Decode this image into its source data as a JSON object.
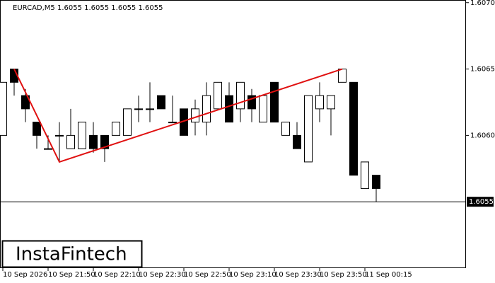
{
  "chart_data": {
    "type": "candlestick",
    "title": "EURCAD,M5  1.6055 1.6055 1.6055 1.6055",
    "categories": [
      "10 Sep 2026",
      null,
      null,
      null,
      "10 Sep 21:50",
      null,
      null,
      null,
      "10 Sep 22:10",
      null,
      null,
      null,
      "10 Sep 22:30",
      null,
      null,
      null,
      "10 Sep 22:50",
      null,
      null,
      null,
      "10 Sep 23:10",
      null,
      null,
      null,
      "10 Sep 23:30",
      null,
      null,
      null,
      "10 Sep 23:50",
      null,
      null,
      null,
      "11 Sep 00:15",
      null
    ],
    "open": [
      1.606,
      1.6065,
      1.6063,
      1.6061,
      1.6059,
      1.606,
      1.6059,
      1.6059,
      1.606,
      1.606,
      1.606,
      1.606,
      1.6062,
      1.6062,
      1.6063,
      1.6061,
      1.6062,
      1.6061,
      1.6061,
      1.6062,
      1.6063,
      1.6062,
      1.6063,
      1.6061,
      1.6064,
      1.606,
      1.606,
      1.6058,
      1.6062,
      1.6062,
      1.6064,
      1.6064,
      1.6056,
      1.6057
    ],
    "high": [
      1.6064,
      1.6065,
      1.60635,
      1.6061,
      1.606,
      1.6061,
      1.6062,
      1.6061,
      1.6061,
      1.606,
      1.6061,
      1.6062,
      1.6063,
      1.6064,
      1.6063,
      1.6063,
      1.6062,
      1.60627,
      1.6064,
      1.6064,
      1.6064,
      1.6064,
      1.60635,
      1.6063,
      1.6064,
      1.6061,
      1.6061,
      1.6063,
      1.6064,
      1.6063,
      1.6065,
      1.6064,
      1.6058,
      1.6057
    ],
    "low": [
      1.606,
      1.6063,
      1.6061,
      1.6059,
      1.6059,
      1.6058,
      1.6059,
      1.6059,
      1.60587,
      1.6058,
      1.606,
      1.606,
      1.6061,
      1.6061,
      1.6062,
      1.6061,
      1.606,
      1.606,
      1.606,
      1.6062,
      1.6061,
      1.6061,
      1.6061,
      1.6061,
      1.6061,
      1.606,
      1.6059,
      1.6058,
      1.6061,
      1.606,
      1.6064,
      1.6057,
      1.6056,
      1.6055
    ],
    "close": [
      1.6064,
      1.6064,
      1.6062,
      1.606,
      1.6059,
      1.606,
      1.606,
      1.6061,
      1.6059,
      1.6059,
      1.6061,
      1.6062,
      1.6062,
      1.6062,
      1.6062,
      1.6061,
      1.606,
      1.6062,
      1.6063,
      1.6064,
      1.6061,
      1.6064,
      1.6062,
      1.6063,
      1.6061,
      1.6061,
      1.6059,
      1.6063,
      1.6063,
      1.6063,
      1.6065,
      1.6057,
      1.6058,
      1.6056
    ],
    "up_color": "#ffffff",
    "down_color": "#000000",
    "ylim": [
      1.605,
      1.60702
    ],
    "yticks": [
      {
        "value": 1.606,
        "label": "1.6060"
      },
      1.6065,
      {
        "value": 1.607,
        "label": "1.6070"
      }
    ],
    "price_line": {
      "value": 1.6055,
      "label": "1.6055"
    },
    "pattern_line": {
      "color": "#e01010",
      "x": [
        1,
        5,
        30
      ],
      "values": [
        1.6065,
        1.6058,
        1.6065
      ]
    },
    "logo": "InstaFintech"
  }
}
